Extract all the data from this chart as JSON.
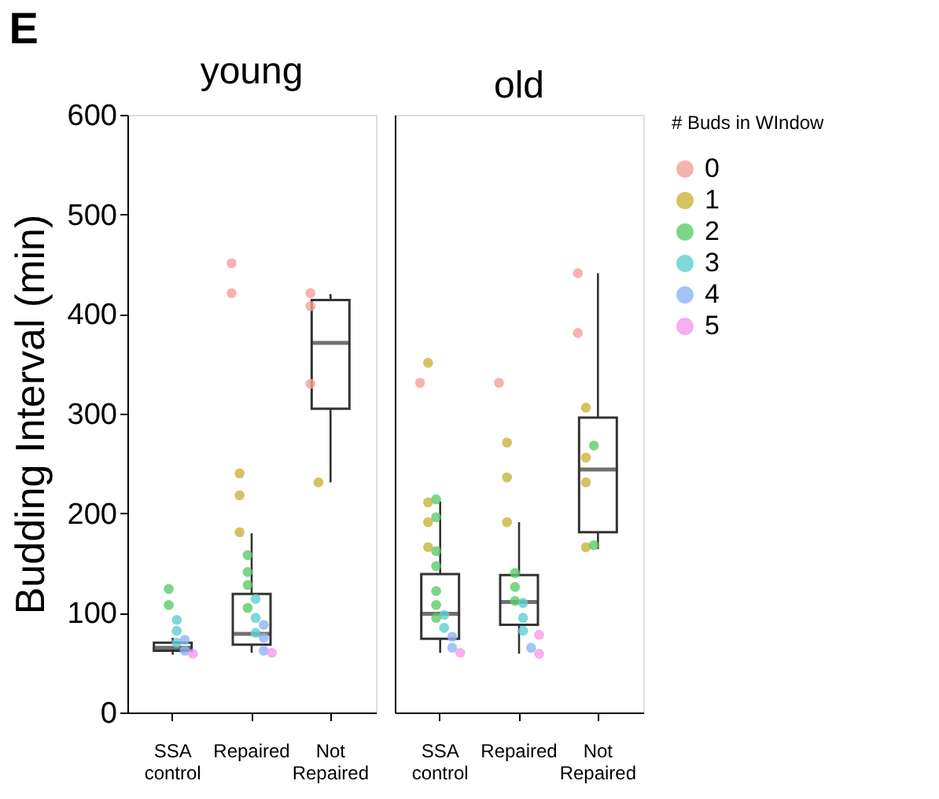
{
  "chart_data": [
    {
      "type": "box",
      "title": "young",
      "ylabel": "Budding Interval (min)",
      "annotations": [
        "E"
      ],
      "categories": [
        "SSA control",
        "Repaired",
        "Not Repaired"
      ],
      "ylim": [
        0,
        600
      ],
      "yticks": [
        0,
        100,
        200,
        300,
        400,
        500,
        600
      ],
      "grid": false,
      "legend": false,
      "boxes": [
        {
          "low": 58,
          "q1": 62,
          "median": 65,
          "q3": 70,
          "high": 75
        },
        {
          "low": 60,
          "q1": 68,
          "median": 79,
          "q3": 119,
          "high": 180
        },
        {
          "low": 231,
          "q1": 305,
          "median": 371,
          "q3": 414,
          "high": 420
        }
      ],
      "series": [
        {
          "type": "scatter",
          "color": "#f4a09a",
          "x": [
            "Repaired",
            "Repaired",
            "Not Repaired",
            "Not Repaired",
            "Not Repaired"
          ],
          "values": [
            451,
            421,
            421,
            408,
            330
          ]
        },
        {
          "type": "scatter",
          "color": "#c9b43a",
          "x": [
            "Repaired",
            "Repaired",
            "Repaired",
            "Not Repaired"
          ],
          "values": [
            240,
            218,
            181,
            231
          ]
        },
        {
          "type": "scatter",
          "color": "#5ccb6a",
          "x": [
            "SSA control",
            "SSA control",
            "Repaired",
            "Repaired",
            "Repaired",
            "Repaired"
          ],
          "values": [
            124,
            108,
            158,
            141,
            128,
            105
          ]
        },
        {
          "type": "scatter",
          "color": "#5fcfcf",
          "x": [
            "SSA control",
            "SSA control",
            "SSA control",
            "Repaired",
            "Repaired",
            "Repaired"
          ],
          "values": [
            93,
            82,
            70,
            114,
            95,
            80
          ]
        },
        {
          "type": "scatter",
          "color": "#8fb4f5",
          "x": [
            "SSA control",
            "SSA control",
            "Repaired",
            "Repaired",
            "Repaired"
          ],
          "values": [
            73,
            62,
            88,
            75,
            62
          ]
        },
        {
          "type": "scatter",
          "color": "#f59be8",
          "x": [
            "SSA control",
            "Repaired"
          ],
          "values": [
            59,
            60
          ]
        }
      ]
    },
    {
      "type": "box",
      "title": "old",
      "legend_title": "# Buds in WIndow",
      "categories": [
        "SSA control",
        "Repaired",
        "Not Repaired"
      ],
      "ylim": [
        0,
        600
      ],
      "yticks": [
        0,
        100,
        200,
        300,
        400,
        500,
        600
      ],
      "grid": false,
      "legend": "right",
      "tick_labels": "x",
      "boxes": [
        {
          "low": 60,
          "q1": 74,
          "median": 99,
          "q3": 139,
          "high": 212
        },
        {
          "low": 59,
          "q1": 88,
          "median": 111,
          "q3": 138,
          "high": 191
        },
        {
          "low": 164,
          "q1": 181,
          "median": 244,
          "q3": 296,
          "high": 441
        }
      ],
      "series": [
        {
          "name": "0",
          "type": "scatter",
          "color": "#f4a09a",
          "x": [
            "SSA control",
            "Repaired",
            "Not Repaired",
            "Not Repaired"
          ],
          "values": [
            331,
            331,
            441,
            381
          ]
        },
        {
          "name": "1",
          "type": "scatter",
          "color": "#c9b43a",
          "x": [
            "SSA control",
            "SSA control",
            "SSA control",
            "SSA control",
            "Repaired",
            "Repaired",
            "Repaired",
            "Not Repaired",
            "Not Repaired",
            "Not Repaired",
            "Not Repaired"
          ],
          "values": [
            351,
            211,
            191,
            166,
            271,
            236,
            191,
            306,
            256,
            231,
            166
          ]
        },
        {
          "name": "2",
          "type": "scatter",
          "color": "#5ccb6a",
          "x": [
            "SSA control",
            "SSA control",
            "SSA control",
            "SSA control",
            "SSA control",
            "SSA control",
            "SSA control",
            "Repaired",
            "Repaired",
            "Repaired",
            "Not Repaired",
            "Not Repaired"
          ],
          "values": [
            214,
            196,
            162,
            147,
            122,
            108,
            95,
            140,
            126,
            112,
            268,
            168
          ]
        },
        {
          "name": "3",
          "type": "scatter",
          "color": "#5fcfcf",
          "x": [
            "SSA control",
            "SSA control",
            "Repaired",
            "Repaired",
            "Repaired"
          ],
          "values": [
            98,
            85,
            110,
            95,
            82
          ]
        },
        {
          "name": "4",
          "type": "scatter",
          "color": "#8fb4f5",
          "x": [
            "SSA control",
            "SSA control",
            "Repaired"
          ],
          "values": [
            76,
            65,
            65
          ]
        },
        {
          "name": "5",
          "type": "scatter",
          "color": "#f59be8",
          "x": [
            "SSA control",
            "Repaired",
            "Repaired"
          ],
          "values": [
            60,
            78,
            59
          ]
        }
      ]
    }
  ]
}
